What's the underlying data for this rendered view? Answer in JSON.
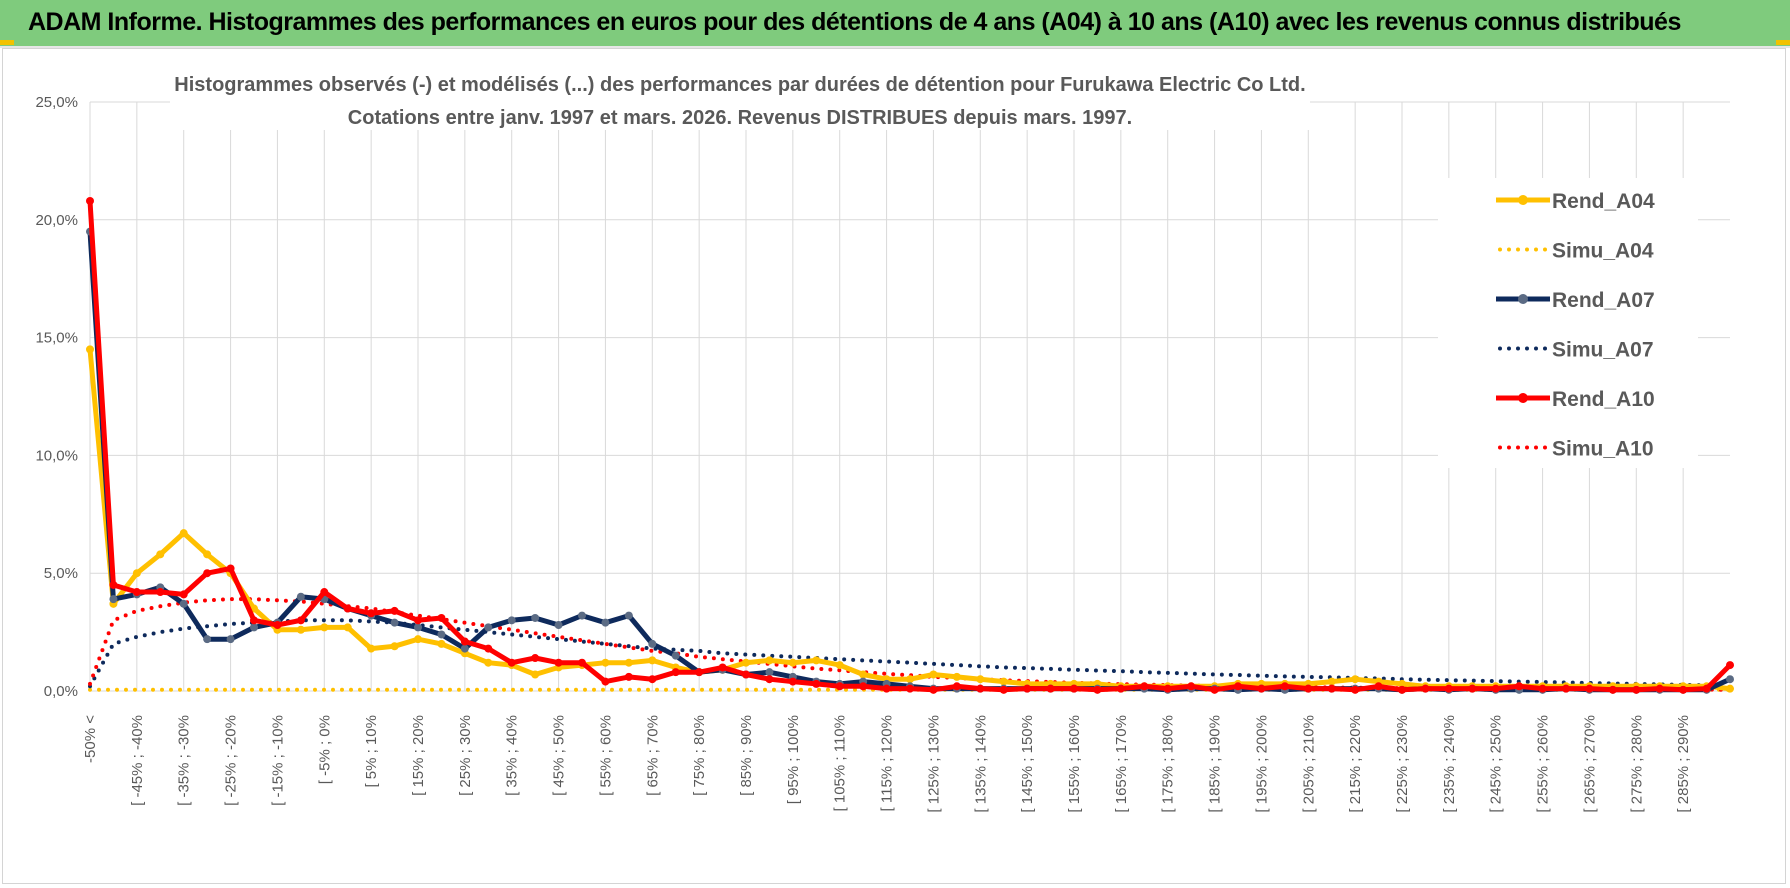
{
  "banner": {
    "title": "ADAM Informe. Histogrammes des performances en euros pour des détentions de 4 ans (A04) à 10 ans (A10) avec les revenus connus distribués",
    "background": "#7fcb7d"
  },
  "chart_data": {
    "type": "line",
    "title": "Histogrammes observés (-) et modélisés (...) des performances par durées de détention pour Furukawa Electric Co Ltd.",
    "subtitle": "Cotations entre janv. 1997 et mars. 2026.  Revenus DISTRIBUES depuis mars. 1997.",
    "xlabel": "",
    "ylabel": "",
    "ylim": [
      0,
      25
    ],
    "yticks": [
      "0,0%",
      "5,0%",
      "10,0%",
      "15,0%",
      "20,0%",
      "25,0%"
    ],
    "x_labels": [
      "-50% <",
      "[ -45% ; -40%",
      "[ -35% ; -30%",
      "[ -25% ; -20%",
      "[ -15% ; -10%",
      "[ -5% ; 0%",
      "[ 5% ; 10%",
      "[ 15% ; 20%",
      "[ 25% ; 30%",
      "[ 35% ; 40%",
      "[ 45% ; 50%",
      "[ 55% ; 60%",
      "[ 65% ; 70%",
      "[ 75% ; 80%",
      "[ 85% ; 90%",
      "[ 95% ; 100%",
      "[ 105% ; 110%",
      "[ 115% ; 120%",
      "[ 125% ; 130%",
      "[ 135% ; 140%",
      "[ 145% ; 150%",
      "[ 155% ; 160%",
      "[ 165% ; 170%",
      "[ 175% ; 180%",
      "[ 185% ; 190%",
      "[ 195% ; 200%",
      "[ 205% ; 210%",
      "[ 215% ; 220%",
      "[ 225% ; 230%",
      "[ 235% ; 240%",
      "[ 245% ; 250%",
      "[ 255% ; 260%",
      "[ 265% ; 270%",
      "[ 275% ; 280%",
      "[ 285% ; 290%"
    ],
    "grid": true,
    "legend_position": "right",
    "series": [
      {
        "name": "Rend_A04",
        "style": "solid",
        "color": "#ffc000",
        "values": [
          14.5,
          3.7,
          5.0,
          5.8,
          6.7,
          5.8,
          5.0,
          3.5,
          2.6,
          2.6,
          2.7,
          2.7,
          1.8,
          1.9,
          2.2,
          2.0,
          1.6,
          1.2,
          1.1,
          0.7,
          1.0,
          1.1,
          1.2,
          1.2,
          1.3,
          1.0,
          0.8,
          0.9,
          1.2,
          1.3,
          1.2,
          1.3,
          1.1,
          0.7,
          0.5,
          0.5,
          0.7,
          0.6,
          0.5,
          0.4,
          0.3,
          0.3,
          0.3,
          0.3,
          0.2,
          0.2,
          0.2,
          0.2,
          0.2,
          0.3,
          0.3,
          0.3,
          0.3,
          0.4,
          0.5,
          0.4,
          0.3,
          0.2,
          0.2,
          0.2,
          0.2,
          0.2,
          0.2,
          0.2,
          0.2,
          0.2,
          0.2,
          0.2,
          0.2,
          0.2,
          0.1
        ]
      },
      {
        "name": "Simu_A04",
        "style": "dotted",
        "color": "#ffc000",
        "values": [
          0.05,
          0.05,
          0.05,
          0.05,
          0.05,
          0.05,
          0.05,
          0.05,
          0.05,
          0.05,
          0.05,
          0.05,
          0.05,
          0.05,
          0.05,
          0.05,
          0.05,
          0.05,
          0.05,
          0.05,
          0.05,
          0.05,
          0.05,
          0.05,
          0.05,
          0.05,
          0.05,
          0.05,
          0.05,
          0.05,
          0.05,
          0.05,
          0.05,
          0.05,
          0.05,
          0.05,
          0.05,
          0.05,
          0.05,
          0.05,
          0.05,
          0.05,
          0.05,
          0.05,
          0.05,
          0.05,
          0.05,
          0.05,
          0.05,
          0.05,
          0.05,
          0.05,
          0.05,
          0.05,
          0.05,
          0.05,
          0.05,
          0.05,
          0.05,
          0.05,
          0.05,
          0.05,
          0.05,
          0.05,
          0.05,
          0.05,
          0.05,
          0.05,
          0.05,
          0.05,
          0.05
        ]
      },
      {
        "name": "Rend_A07",
        "style": "solid",
        "color": "#0e2a5c",
        "values": [
          19.5,
          3.9,
          4.1,
          4.4,
          3.7,
          2.2,
          2.2,
          2.7,
          2.9,
          4.0,
          3.9,
          3.5,
          3.2,
          2.9,
          2.7,
          2.4,
          1.8,
          2.7,
          3.0,
          3.1,
          2.8,
          3.2,
          2.9,
          3.2,
          2.0,
          1.5,
          0.8,
          0.9,
          0.7,
          0.8,
          0.6,
          0.4,
          0.3,
          0.4,
          0.3,
          0.2,
          0.1,
          0.1,
          0.1,
          0.1,
          0.1,
          0.1,
          0.1,
          0.1,
          0.1,
          0.1,
          0.05,
          0.1,
          0.1,
          0.05,
          0.1,
          0.05,
          0.1,
          0.1,
          0.1,
          0.1,
          0.05,
          0.1,
          0.05,
          0.1,
          0.05,
          0.05,
          0.05,
          0.1,
          0.05,
          0.05,
          0.05,
          0.05,
          0.05,
          0.05,
          0.5
        ]
      },
      {
        "name": "Simu_A07",
        "style": "dotted",
        "color": "#0e2a5c",
        "values": [
          0.2,
          2.0,
          2.3,
          2.5,
          2.65,
          2.75,
          2.85,
          2.9,
          2.95,
          3.0,
          3.0,
          3.0,
          2.95,
          2.9,
          2.8,
          2.7,
          2.6,
          2.5,
          2.4,
          2.3,
          2.2,
          2.1,
          2.0,
          1.9,
          1.8,
          1.75,
          1.7,
          1.6,
          1.55,
          1.5,
          1.45,
          1.4,
          1.35,
          1.3,
          1.25,
          1.2,
          1.15,
          1.1,
          1.05,
          1.0,
          0.97,
          0.94,
          0.9,
          0.87,
          0.84,
          0.8,
          0.77,
          0.74,
          0.7,
          0.68,
          0.65,
          0.62,
          0.6,
          0.58,
          0.55,
          0.53,
          0.5,
          0.48,
          0.46,
          0.44,
          0.42,
          0.4,
          0.38,
          0.36,
          0.34,
          0.32,
          0.3,
          0.28,
          0.26,
          0.24,
          0.1
        ]
      },
      {
        "name": "Rend_A10",
        "style": "solid",
        "color": "#ff0000",
        "values": [
          20.8,
          4.5,
          4.2,
          4.2,
          4.1,
          5.0,
          5.2,
          3.0,
          2.8,
          3.0,
          4.2,
          3.5,
          3.3,
          3.4,
          3.0,
          3.1,
          2.1,
          1.8,
          1.2,
          1.4,
          1.2,
          1.2,
          0.4,
          0.6,
          0.5,
          0.8,
          0.8,
          1.0,
          0.7,
          0.5,
          0.4,
          0.3,
          0.2,
          0.2,
          0.1,
          0.1,
          0.05,
          0.2,
          0.1,
          0.05,
          0.1,
          0.1,
          0.1,
          0.05,
          0.1,
          0.2,
          0.1,
          0.2,
          0.05,
          0.2,
          0.1,
          0.2,
          0.1,
          0.1,
          0.05,
          0.2,
          0.05,
          0.1,
          0.1,
          0.1,
          0.1,
          0.2,
          0.1,
          0.1,
          0.1,
          0.05,
          0.05,
          0.1,
          0.05,
          0.1,
          1.1
        ]
      },
      {
        "name": "Simu_A10",
        "style": "dotted",
        "color": "#ff0000",
        "values": [
          0.3,
          3.0,
          3.4,
          3.6,
          3.75,
          3.85,
          3.9,
          3.9,
          3.85,
          3.8,
          3.7,
          3.6,
          3.5,
          3.35,
          3.2,
          3.05,
          2.9,
          2.75,
          2.6,
          2.45,
          2.3,
          2.15,
          2.0,
          1.85,
          1.7,
          1.6,
          1.45,
          1.35,
          1.25,
          1.15,
          1.05,
          0.95,
          0.88,
          0.8,
          0.73,
          0.67,
          0.6,
          0.55,
          0.5,
          0.46,
          0.42,
          0.38,
          0.35,
          0.32,
          0.29,
          0.27,
          0.25,
          0.23,
          0.21,
          0.19,
          0.18,
          0.17,
          0.16,
          0.15,
          0.14,
          0.13,
          0.12,
          0.11,
          0.1,
          0.1,
          0.09,
          0.09,
          0.08,
          0.08,
          0.08,
          0.07,
          0.07,
          0.07,
          0.06,
          0.06,
          0.05
        ]
      }
    ]
  }
}
